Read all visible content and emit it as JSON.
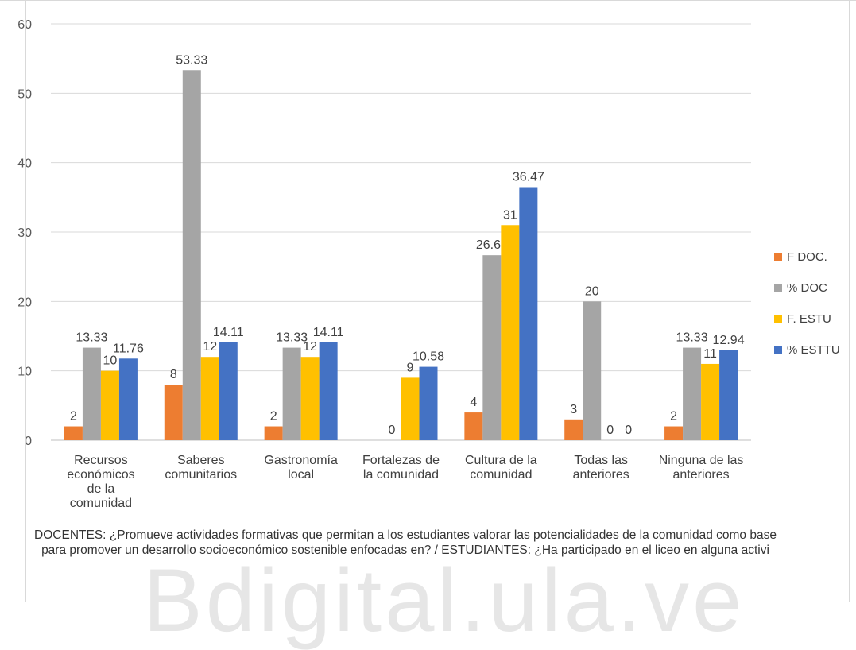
{
  "chart_data": {
    "type": "bar",
    "categories": [
      "Recursos\neconómicos\nde la\ncomunidad",
      "Saberes\ncomunitarios",
      "Gastronomía\nlocal",
      "Fortalezas de\nla comunidad",
      "Cultura de la\ncomunidad",
      "Todas las\nanteriores",
      "Ninguna de las\nanteriores"
    ],
    "series": [
      {
        "name": "F DOC.",
        "color": "#ed7d31",
        "values": [
          2,
          8,
          2,
          0,
          4,
          3,
          2
        ]
      },
      {
        "name": "% DOC",
        "color": "#a5a5a5",
        "values": [
          13.33,
          53.33,
          13.33,
          0,
          26.66,
          20,
          13.33
        ]
      },
      {
        "name": "F. ESTU",
        "color": "#ffc000",
        "values": [
          10,
          12,
          12,
          9,
          31,
          0,
          11
        ]
      },
      {
        "name": "% ESTTU",
        "color": "#4472c4",
        "values": [
          11.76,
          14.11,
          14.11,
          10.58,
          36.47,
          0,
          12.94
        ]
      }
    ],
    "data_labels": [
      [
        "2",
        "8",
        "2",
        "",
        "4",
        "3",
        "2"
      ],
      [
        "13.33",
        "53.33",
        "13.33",
        "0",
        "26.66",
        "20",
        "13.33"
      ],
      [
        "10",
        "12",
        "12",
        "9",
        "31",
        "0",
        "11"
      ],
      [
        "11.76",
        "14.11",
        "14.11",
        "10.58",
        "36.47",
        "0",
        "12.94"
      ]
    ],
    "yticks": [
      0,
      10,
      20,
      30,
      40,
      50,
      60
    ],
    "ylim": [
      0,
      60
    ],
    "grid": true,
    "legend_position": "right",
    "title": "",
    "xlabel": "",
    "ylabel": ""
  },
  "caption": "DOCENTES: ¿Promueve actividades formativas que permitan a los estudiantes valorar las potencialidades de la comunidad como base para promover un desarrollo socioeconómico sostenible enfocadas en? / ESTUDIANTES: ¿Ha participado en el liceo en alguna activi",
  "watermark": "Bdigital.ula.ve"
}
